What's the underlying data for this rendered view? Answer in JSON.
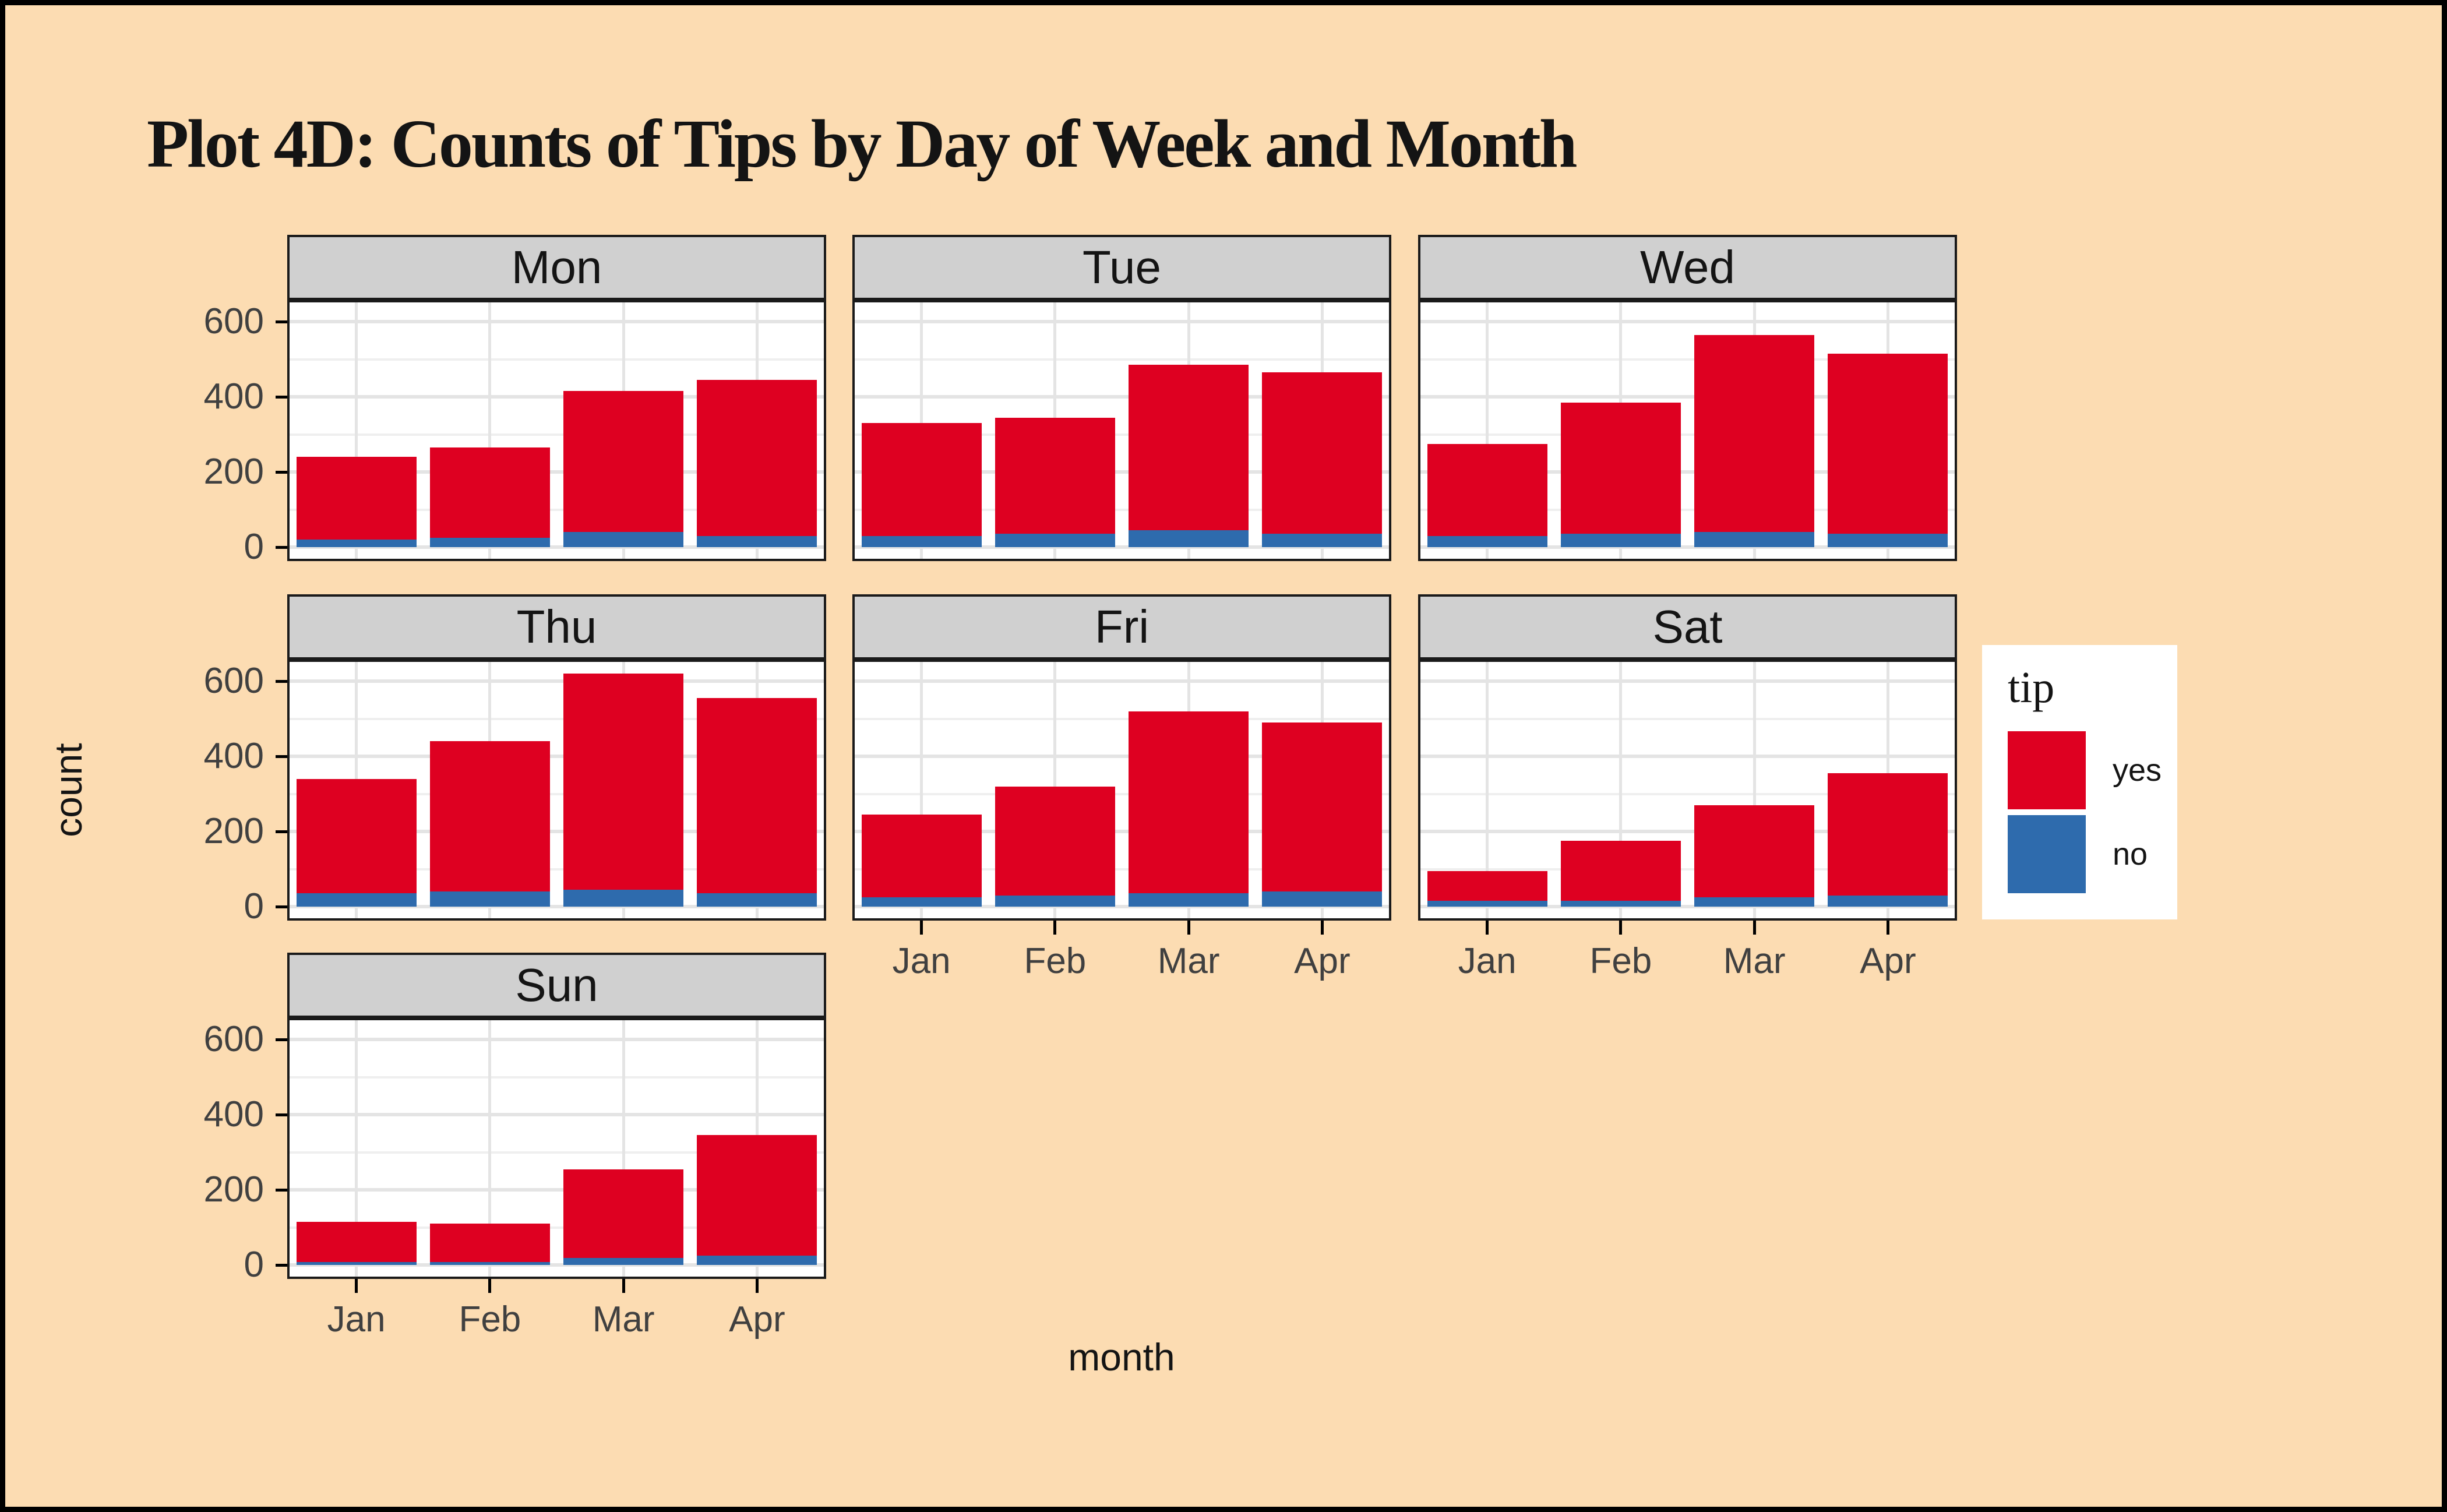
{
  "title": "Plot 4D: Counts of Tips by Day of Week and Month",
  "axes": {
    "x_label": "month",
    "y_label": "count",
    "y_ticks": [
      "0",
      "200",
      "400",
      "600"
    ],
    "x_ticks": [
      "Jan",
      "Feb",
      "Mar",
      "Apr"
    ]
  },
  "legend": {
    "title": "tip",
    "entries": [
      {
        "label": "yes",
        "color": "#DE0021"
      },
      {
        "label": "no",
        "color": "#2E6BAD"
      }
    ]
  },
  "colors": {
    "background": "#FCDCB2",
    "panel": "#FFFFFF",
    "strip": "#D0D0D0",
    "grid_major": "#E4E4E4",
    "grid_minor": "#EFEFEF",
    "border": "#000000",
    "axis_text": "#404040",
    "text": "#141414",
    "bar_yes": "#DE0021",
    "bar_no": "#2E6BAD"
  },
  "chart_data": {
    "type": "bar",
    "stacked": true,
    "title": "Plot 4D: Counts of Tips by Day of Week and Month",
    "xlabel": "month",
    "ylabel": "count",
    "categories": [
      "Jan",
      "Feb",
      "Mar",
      "Apr"
    ],
    "ylim": [
      0,
      660
    ],
    "yticks": [
      0,
      200,
      400,
      600
    ],
    "grid": true,
    "legend_position": "right",
    "series_order_bottom_to_top": [
      "no",
      "yes"
    ],
    "facet_by": "day of week",
    "facets": [
      {
        "label": "Mon",
        "row": 0,
        "col": 0,
        "y_axis": true,
        "x_axis": false,
        "no": [
          20,
          25,
          40,
          30
        ],
        "yes": [
          220,
          240,
          375,
          415
        ],
        "totals": [
          240,
          265,
          415,
          445
        ]
      },
      {
        "label": "Tue",
        "row": 0,
        "col": 1,
        "y_axis": false,
        "x_axis": false,
        "no": [
          30,
          35,
          45,
          35
        ],
        "yes": [
          300,
          310,
          440,
          430
        ],
        "totals": [
          330,
          345,
          485,
          465
        ]
      },
      {
        "label": "Wed",
        "row": 0,
        "col": 2,
        "y_axis": false,
        "x_axis": false,
        "no": [
          30,
          35,
          40,
          35
        ],
        "yes": [
          245,
          350,
          525,
          480
        ],
        "totals": [
          275,
          385,
          565,
          515
        ]
      },
      {
        "label": "Thu",
        "row": 1,
        "col": 0,
        "y_axis": true,
        "x_axis": false,
        "no": [
          35,
          40,
          45,
          35
        ],
        "yes": [
          305,
          400,
          575,
          520
        ],
        "totals": [
          340,
          440,
          620,
          555
        ]
      },
      {
        "label": "Fri",
        "row": 1,
        "col": 1,
        "y_axis": false,
        "x_axis": true,
        "no": [
          25,
          30,
          35,
          40
        ],
        "yes": [
          220,
          290,
          485,
          450
        ],
        "totals": [
          245,
          320,
          520,
          490
        ]
      },
      {
        "label": "Sat",
        "row": 1,
        "col": 2,
        "y_axis": false,
        "x_axis": true,
        "no": [
          15,
          15,
          25,
          30
        ],
        "yes": [
          80,
          160,
          245,
          325
        ],
        "totals": [
          95,
          175,
          270,
          355
        ]
      },
      {
        "label": "Sun",
        "row": 2,
        "col": 0,
        "y_axis": true,
        "x_axis": true,
        "no": [
          8,
          8,
          18,
          25
        ],
        "yes": [
          107,
          102,
          237,
          320
        ],
        "totals": [
          115,
          110,
          255,
          345
        ]
      }
    ]
  }
}
